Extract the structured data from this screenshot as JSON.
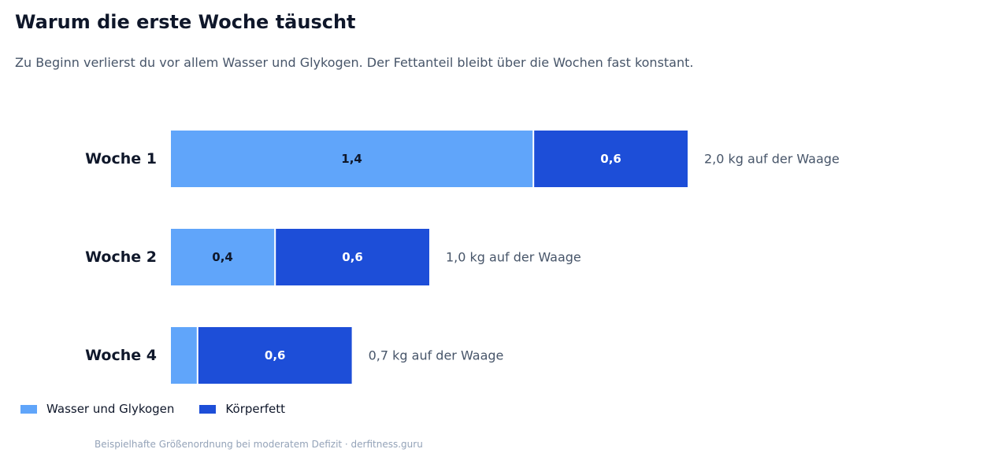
{
  "chart_data": {
    "type": "bar",
    "orientation": "horizontal",
    "stacked": true,
    "title": "Warum die erste Woche täuscht",
    "subtitle": "Zu Beginn verlierst du vor allem Wasser und Glykogen. Der Fettanteil bleibt über die Wochen fast konstant.",
    "categories": [
      "Woche 1",
      "Woche 2",
      "Woche 4"
    ],
    "series": [
      {
        "name": "Wasser und Glykogen",
        "values": [
          1.4,
          0.4,
          0.1
        ],
        "labels": [
          "1,4",
          "0,4",
          ""
        ],
        "color": "#60a5fa",
        "label_color": "#0f172a"
      },
      {
        "name": "Körperfett",
        "values": [
          0.6,
          0.6,
          0.6
        ],
        "labels": [
          "0,6",
          "0,6",
          "0,6"
        ],
        "color": "#1d4ed8",
        "label_color": "#ffffff"
      }
    ],
    "totals": [
      "2,0 kg auf der Waage",
      "1,0 kg auf der Waage",
      "0,7 kg auf der Waage"
    ],
    "xlim": [
      0,
      2.0
    ],
    "grid": false,
    "legend_position": "bottom-left"
  },
  "footnote": "Beispielhafte Größenordnung bei moderatem Defizit · derfitness.guru"
}
